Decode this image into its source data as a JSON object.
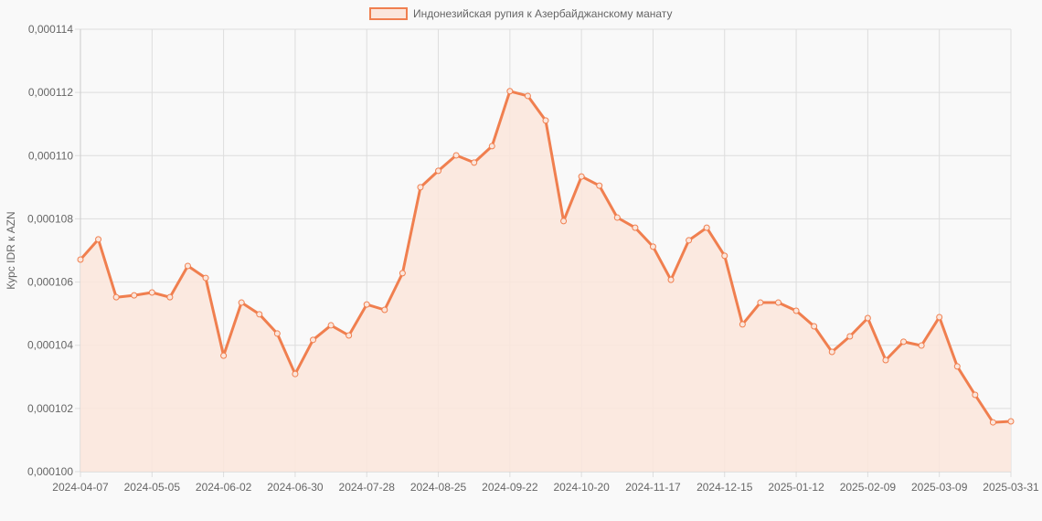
{
  "legend": {
    "label": "Индонезийская рупия к Азербайджанскому манату"
  },
  "colors": {
    "line": "#f07f4f",
    "fill": "#fbe6dc",
    "grid": "#dddddd",
    "background": "#f9f9f9"
  },
  "chart_data": {
    "type": "area",
    "title": "",
    "xlabel": "",
    "ylabel": "Курс IDR к AZN",
    "ylim": [
      0.0001,
      0.000114
    ],
    "y_ticks": [
      "0,000100",
      "0,000102",
      "0,000104",
      "0,000106",
      "0,000108",
      "0,000110",
      "0,000112",
      "0,000114"
    ],
    "x_ticks": [
      "2024-04-07",
      "2024-05-05",
      "2024-06-02",
      "2024-06-30",
      "2024-07-28",
      "2024-08-25",
      "2024-09-22",
      "2024-10-20",
      "2024-11-17",
      "2024-12-15",
      "2025-01-12",
      "2025-02-09",
      "2025-03-09",
      "2025-03-31"
    ],
    "grid": true,
    "legend_position": "top",
    "series": [
      {
        "name": "Индонезийская рупия к Азербайджанскому манату",
        "values": [
          0.00010671,
          0.00010735,
          0.00010552,
          0.00010558,
          0.00010567,
          0.00010552,
          0.00010651,
          0.00010613,
          0.00010367,
          0.00010535,
          0.00010498,
          0.00010437,
          0.00010309,
          0.00010417,
          0.00010463,
          0.00010431,
          0.00010529,
          0.00010512,
          0.00010628,
          0.000109,
          0.00010952,
          0.00011001,
          0.00010978,
          0.0001103,
          0.00011204,
          0.00011189,
          0.00011111,
          0.00010793,
          0.00010934,
          0.00010905,
          0.00010804,
          0.00010772,
          0.00010712,
          0.00010607,
          0.00010732,
          0.00010772,
          0.00010683,
          0.00010466,
          0.00010535,
          0.00010535,
          0.00010509,
          0.0001046,
          0.00010379,
          0.00010428,
          0.00010486,
          0.00010353,
          0.00010411,
          0.00010399,
          0.00010489,
          0.00010333,
          0.00010243,
          0.00010156,
          0.00010159
        ]
      }
    ]
  }
}
